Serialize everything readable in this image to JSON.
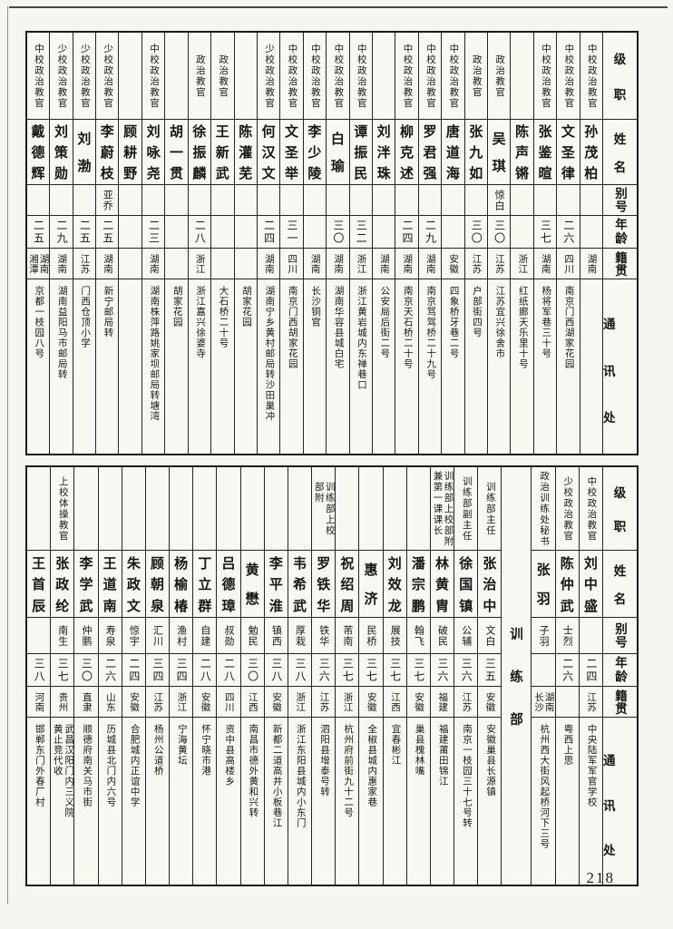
{
  "page_number": "218",
  "row_labels": [
    "级职",
    "姓名",
    "别号",
    "年龄",
    "籍贯",
    "通讯处"
  ],
  "sections": [
    {
      "title": "",
      "people": [
        {
          "rank": "中校政治教官",
          "name": "孙茂柏",
          "alias": "",
          "age": "",
          "origin": "湖南",
          "address": ""
        },
        {
          "rank": "中校政治教官",
          "name": "文圣律",
          "alias": "",
          "age": "二六",
          "origin": "四川",
          "address": "南京门西湖家花园"
        },
        {
          "rank": "中校政治教官",
          "name": "张鉴暄",
          "alias": "",
          "age": "三七",
          "origin": "湖南",
          "address": "杨将军巷三十号"
        },
        {
          "rank": "",
          "name": "陈声锵",
          "alias": "",
          "age": "",
          "origin": "浙江",
          "address": "红纸廊天乐里十号"
        },
        {
          "rank": "政治教官",
          "name": "吴琪",
          "alias": "惊白",
          "age": "三〇",
          "origin": "江苏",
          "address": "江苏宜兴徐舍市"
        },
        {
          "rank": "政治教官",
          "name": "张九如",
          "alias": "",
          "age": "三〇",
          "origin": "江苏",
          "address": "户部街四号"
        },
        {
          "rank": "中校政治教官",
          "name": "唐道海",
          "alias": "",
          "age": "",
          "origin": "安徽",
          "address": "四象桥牙巷二号"
        },
        {
          "rank": "中校政治教官",
          "name": "罗君强",
          "alias": "",
          "age": "二九",
          "origin": "湖南",
          "address": "南京骂驾桥二十九号"
        },
        {
          "rank": "中校政治教官",
          "name": "柳克述",
          "alias": "",
          "age": "二四",
          "origin": "湖南",
          "address": "南京天石桥二十号"
        },
        {
          "rank": "",
          "name": "刘泮珠",
          "alias": "",
          "age": "",
          "origin": "湖南",
          "address": "公安局后街二号"
        },
        {
          "rank": "中校政治教官",
          "name": "谭振民",
          "alias": "",
          "age": "三二",
          "origin": "浙江",
          "address": "浙江黄岩城内东禅巷口"
        },
        {
          "rank": "中校政治教官",
          "name": "白瑜",
          "alias": "",
          "age": "三〇",
          "origin": "湖南",
          "address": "湖南华容县城白宅"
        },
        {
          "rank": "中校政治教官",
          "name": "李少陵",
          "alias": "",
          "age": "",
          "origin": "湖南",
          "address": "长沙铜官"
        },
        {
          "rank": "中校政治教官",
          "name": "文圣举",
          "alias": "",
          "age": "三一",
          "origin": "四川",
          "address": "南京门西胡家花园"
        },
        {
          "rank": "少校政治教官",
          "name": "何汉文",
          "alias": "",
          "age": "二四",
          "origin": "湖南",
          "address": "湖南宁乡黄村邮局转沙田巢冲"
        },
        {
          "rank": "",
          "name": "陈灌芜",
          "alias": "",
          "age": "",
          "origin": "",
          "address": "胡家花园"
        },
        {
          "rank": "政治教官",
          "name": "王新武",
          "alias": "",
          "age": "",
          "origin": "",
          "address": "大石桥二十号"
        },
        {
          "rank": "政治教官",
          "name": "徐振麟",
          "alias": "",
          "age": "二八",
          "origin": "浙江",
          "address": "浙江嘉兴徐婆寺"
        },
        {
          "rank": "",
          "name": "胡一贯",
          "alias": "",
          "age": "",
          "origin": "",
          "address": "胡家花园"
        },
        {
          "rank": "中校政治教官",
          "name": "刘咏尧",
          "alias": "",
          "age": "二三",
          "origin": "湖南",
          "address": "湖南株萍路姚家坝邮局转塘湾"
        },
        {
          "rank": "",
          "name": "顾耕野",
          "alias": "",
          "age": "",
          "origin": "",
          "address": ""
        },
        {
          "rank": "少校政治教官",
          "name": "李蔚枝",
          "alias": "亚乔",
          "age": "二五",
          "origin": "湖南",
          "address": "新宁邮局转"
        },
        {
          "rank": "少校政治教官",
          "name": "刘渤",
          "alias": "",
          "age": "二五",
          "origin": "江苏",
          "address": "门西仓顶小学"
        },
        {
          "rank": "少校政治教官",
          "name": "刘策勋",
          "alias": "",
          "age": "二九",
          "origin": "湖南",
          "address": "湖南益阳马市邮局转"
        },
        {
          "rank": "中校政治教官",
          "name": "戴德辉",
          "alias": "",
          "age": "二五",
          "origin": "湖南\n湘潭",
          "address": "京都一枝园八号"
        }
      ]
    },
    {
      "title": "训练部",
      "divider_after": 3,
      "people": [
        {
          "rank": "中校政治教官",
          "name": "刘中盛",
          "alias": "",
          "age": "二四",
          "origin": "江苏",
          "address": "中央陆军军官学校"
        },
        {
          "rank": "少校政治教官",
          "name": "陈仲武",
          "alias": "士烈",
          "age": "二六",
          "origin": "",
          "address": "粤西上思"
        },
        {
          "rank": "政治训练处秘书",
          "name": "张羽",
          "alias": "子羽",
          "age": "",
          "origin": "湖南\n长沙",
          "address": "杭州西大街风起桥河下三号"
        },
        {
          "rank": "训练部主任",
          "name": "张治中",
          "alias": "文白",
          "age": "三五",
          "origin": "安徽",
          "address": "安徽巢县长源镇"
        },
        {
          "rank": "训练部副主任",
          "name": "徐国镇",
          "alias": "公辅",
          "age": "三六",
          "origin": "江苏",
          "address": "南京一枝园三十七号转"
        },
        {
          "rank": "训练部上校部附\n兼第一课课长",
          "name": "林黄胄",
          "alias": "破民",
          "age": "三六",
          "origin": "福建",
          "address": "福建莆田锦江"
        },
        {
          "rank": "",
          "name": "潘宗鹏",
          "alias": "翰飞",
          "age": "三七",
          "origin": "安徽",
          "address": "巢县槐林嘴"
        },
        {
          "rank": "",
          "name": "刘效龙",
          "alias": "展技",
          "age": "三七",
          "origin": "江西",
          "address": "宜春彬江"
        },
        {
          "rank": "",
          "name": "惠济",
          "alias": "民桥",
          "age": "三七",
          "origin": "安徽",
          "address": "全椒县城内惠家巷"
        },
        {
          "rank": "",
          "name": "祝绍周",
          "alias": "芾南",
          "age": "三七",
          "origin": "浙江",
          "address": "杭州府前街九十二号"
        },
        {
          "rank": "训练部上校\n部附",
          "name": "罗铁华",
          "alias": "铁华",
          "age": "三六",
          "origin": "江苏",
          "address": "泗阳县增泰号转"
        },
        {
          "rank": "",
          "name": "韦希武",
          "alias": "厚栽",
          "age": "三八",
          "origin": "浙江",
          "address": "浙江东阳县城内小东门"
        },
        {
          "rank": "",
          "name": "李平淮",
          "alias": "镇西",
          "age": "三八",
          "origin": "安徽",
          "address": "新都二道高井小板巷江"
        },
        {
          "rank": "",
          "name": "黄懋",
          "alias": "勉民",
          "age": "三〇",
          "origin": "江西",
          "address": "南昌市德外黄和兴转"
        },
        {
          "rank": "",
          "name": "吕德璋",
          "alias": "叔勋",
          "age": "二八",
          "origin": "四川",
          "address": "资中县高楼乡"
        },
        {
          "rank": "",
          "name": "丁立群",
          "alias": "自建",
          "age": "二八",
          "origin": "安徽",
          "address": "怀宁晓市港"
        },
        {
          "rank": "",
          "name": "杨榆椿",
          "alias": "渔村",
          "age": "三四",
          "origin": "浙江",
          "address": "宁海黄坛"
        },
        {
          "rank": "",
          "name": "顾朝泉",
          "alias": "汇川",
          "age": "三四",
          "origin": "江苏",
          "address": "杨州公道桥"
        },
        {
          "rank": "",
          "name": "朱政文",
          "alias": "惊宇",
          "age": "二四",
          "origin": "安徽",
          "address": "合肥城内正谊中学"
        },
        {
          "rank": "",
          "name": "王道南",
          "alias": "寿泉",
          "age": "二六",
          "origin": "山东",
          "address": "历城县北门内六号"
        },
        {
          "rank": "",
          "name": "李学武",
          "alias": "仲鹏",
          "age": "三〇",
          "origin": "直隶",
          "address": "顺德府南关马市街"
        },
        {
          "rank": "上校体操教官",
          "name": "张政纶",
          "alias": "南生",
          "age": "三七",
          "origin": "贵州",
          "address": "武昌汉阳门内三义院\n黄止竞代收"
        },
        {
          "rank": "",
          "name": "王首辰",
          "alias": "",
          "age": "三八",
          "origin": "河南",
          "address": "邯郸东门外春厂村"
        }
      ]
    }
  ]
}
